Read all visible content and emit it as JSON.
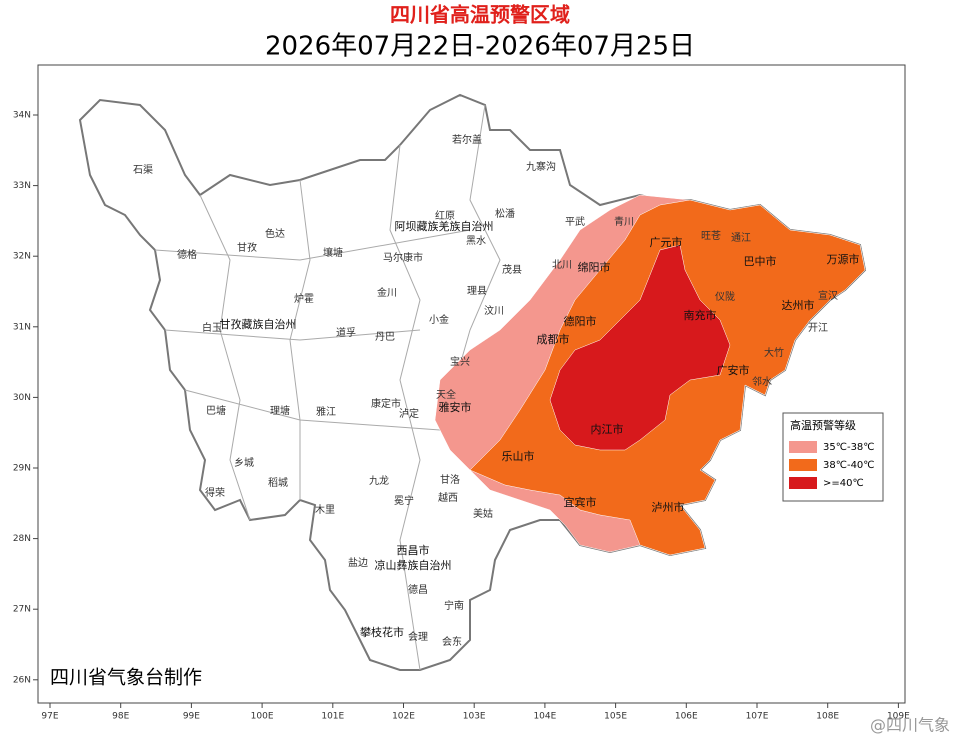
{
  "header": {
    "title": "四川省高温预警区域",
    "period": "2026年07月22日-2026年07月25日"
  },
  "axes": {
    "lat_ticks": [
      "34N",
      "33N",
      "32N",
      "31N",
      "30N",
      "29N",
      "28N",
      "27N",
      "26N"
    ],
    "lon_ticks": [
      "97E",
      "98E",
      "99E",
      "100E",
      "101E",
      "102E",
      "103E",
      "104E",
      "105E",
      "106E",
      "107E",
      "108E",
      "109E"
    ]
  },
  "legend": {
    "title": "高温预警等级",
    "levels": [
      {
        "label": "35℃-38℃",
        "color": "#f4978e"
      },
      {
        "label": "38℃-40℃",
        "color": "#f26a1b"
      },
      {
        "label": ">=40℃",
        "color": "#d7191c"
      }
    ]
  },
  "places": [
    "石渠",
    "德格",
    "甘孜",
    "色达",
    "白玉",
    "甘孜藏族自治州",
    "炉霍",
    "巴塘",
    "理塘",
    "乡城",
    "稻城",
    "得荣",
    "木里",
    "九龙",
    "康定市",
    "雅江",
    "泸定",
    "丹巴",
    "道孚",
    "金川",
    "小金",
    "马尔康市",
    "壤塘",
    "阿坝藏族羌族自治州",
    "红原",
    "若尔盖",
    "九寨沟",
    "松潘",
    "黑水",
    "茂县",
    "理县",
    "汶川",
    "平武",
    "青川",
    "北川",
    "绵阳市",
    "广元市",
    "旺苍",
    "通江",
    "巴中市",
    "万源市",
    "宣汉",
    "达州市",
    "开江",
    "大竹",
    "广安市",
    "邻水",
    "南充市",
    "仪陇",
    "成都市",
    "德阳市",
    "内江市",
    "雅安市",
    "天全",
    "宝兴",
    "乐山市",
    "宜宾市",
    "泸州市",
    "凉山彝族自治州",
    "西昌市",
    "攀枝花市",
    "会理",
    "会东",
    "宁南",
    "德昌",
    "盐边",
    "美姑",
    "越西",
    "冕宁",
    "甘洛"
  ],
  "credit": "四川省气象台制作",
  "watermark": "@四川气象"
}
